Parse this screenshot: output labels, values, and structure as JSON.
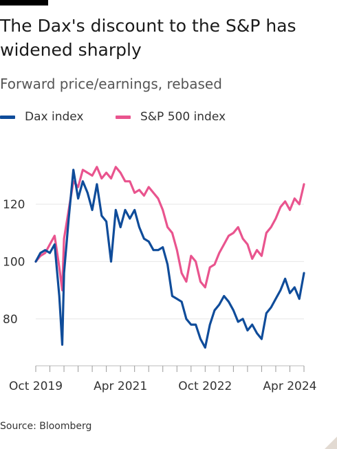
{
  "header": {
    "title": "The Dax's discount to the S&P has widened sharply",
    "subtitle": "Forward price/earnings, rebased"
  },
  "footer": {
    "source": "Source: Bloomberg"
  },
  "colors": {
    "dax": "#0f4c9a",
    "sp500": "#e9548e",
    "grid": "#e6e6e6",
    "tick_text": "#333333"
  },
  "chart_data": {
    "type": "line",
    "title": "The Dax's discount to the S&P has widened sharply",
    "subtitle": "Forward price/earnings, rebased",
    "xlabel": "",
    "ylabel": "",
    "x_ticks": [
      "Oct 2019",
      "Apr 2021",
      "Oct 2022",
      "Apr 2024"
    ],
    "y_ticks": [
      80,
      100,
      120
    ],
    "xlim": [
      "2019-10",
      "2024-07"
    ],
    "ylim": [
      67,
      138
    ],
    "grid": true,
    "legend": "top-left",
    "series": [
      {
        "name": "Dax index",
        "color": "#0f4c9a",
        "points": [
          [
            "2019-10",
            100
          ],
          [
            "2019-11",
            103
          ],
          [
            "2019-12",
            104
          ],
          [
            "2020-01",
            103
          ],
          [
            "2020-02",
            106
          ],
          [
            "2020-03",
            88
          ],
          [
            "2020-03-20",
            71
          ],
          [
            "2020-04",
            96
          ],
          [
            "2020-05",
            115
          ],
          [
            "2020-06",
            132
          ],
          [
            "2020-07",
            122
          ],
          [
            "2020-08",
            128
          ],
          [
            "2020-09",
            124
          ],
          [
            "2020-10",
            118
          ],
          [
            "2020-11",
            127
          ],
          [
            "2020-12",
            116
          ],
          [
            "2021-01",
            114
          ],
          [
            "2021-02",
            100
          ],
          [
            "2021-03",
            118
          ],
          [
            "2021-04",
            112
          ],
          [
            "2021-05",
            118
          ],
          [
            "2021-06",
            115
          ],
          [
            "2021-07",
            118
          ],
          [
            "2021-08",
            112
          ],
          [
            "2021-09",
            108
          ],
          [
            "2021-10",
            107
          ],
          [
            "2021-11",
            104
          ],
          [
            "2021-12",
            104
          ],
          [
            "2022-01",
            105
          ],
          [
            "2022-02",
            99
          ],
          [
            "2022-03",
            88
          ],
          [
            "2022-04",
            87
          ],
          [
            "2022-05",
            86
          ],
          [
            "2022-06",
            80
          ],
          [
            "2022-07",
            78
          ],
          [
            "2022-08",
            78
          ],
          [
            "2022-09",
            73
          ],
          [
            "2022-10",
            70
          ],
          [
            "2022-11",
            78
          ],
          [
            "2022-12",
            83
          ],
          [
            "2023-01",
            85
          ],
          [
            "2023-02",
            88
          ],
          [
            "2023-03",
            86
          ],
          [
            "2023-04",
            83
          ],
          [
            "2023-05",
            79
          ],
          [
            "2023-06",
            80
          ],
          [
            "2023-07",
            76
          ],
          [
            "2023-08",
            78
          ],
          [
            "2023-09",
            75
          ],
          [
            "2023-10",
            73
          ],
          [
            "2023-11",
            82
          ],
          [
            "2023-12",
            84
          ],
          [
            "2024-01",
            87
          ],
          [
            "2024-02",
            90
          ],
          [
            "2024-03",
            94
          ],
          [
            "2024-04",
            89
          ],
          [
            "2024-05",
            91
          ],
          [
            "2024-06",
            87
          ],
          [
            "2024-07",
            96
          ]
        ]
      },
      {
        "name": "S&P 500 index",
        "color": "#e9548e",
        "points": [
          [
            "2019-10",
            100
          ],
          [
            "2019-11",
            102
          ],
          [
            "2019-12",
            103
          ],
          [
            "2020-01",
            106
          ],
          [
            "2020-02",
            109
          ],
          [
            "2020-03",
            98
          ],
          [
            "2020-03-20",
            90
          ],
          [
            "2020-04",
            108
          ],
          [
            "2020-05",
            118
          ],
          [
            "2020-06",
            128
          ],
          [
            "2020-07",
            126
          ],
          [
            "2020-08",
            132
          ],
          [
            "2020-09",
            131
          ],
          [
            "2020-10",
            130
          ],
          [
            "2020-11",
            133
          ],
          [
            "2020-12",
            129
          ],
          [
            "2021-01",
            131
          ],
          [
            "2021-02",
            129
          ],
          [
            "2021-03",
            133
          ],
          [
            "2021-04",
            131
          ],
          [
            "2021-05",
            128
          ],
          [
            "2021-06",
            128
          ],
          [
            "2021-07",
            124
          ],
          [
            "2021-08",
            125
          ],
          [
            "2021-09",
            123
          ],
          [
            "2021-10",
            126
          ],
          [
            "2021-11",
            124
          ],
          [
            "2021-12",
            122
          ],
          [
            "2022-01",
            118
          ],
          [
            "2022-02",
            112
          ],
          [
            "2022-03",
            110
          ],
          [
            "2022-04",
            104
          ],
          [
            "2022-05",
            96
          ],
          [
            "2022-06",
            93
          ],
          [
            "2022-07",
            102
          ],
          [
            "2022-08",
            100
          ],
          [
            "2022-09",
            93
          ],
          [
            "2022-10",
            91
          ],
          [
            "2022-11",
            98
          ],
          [
            "2022-12",
            99
          ],
          [
            "2023-01",
            103
          ],
          [
            "2023-02",
            106
          ],
          [
            "2023-03",
            109
          ],
          [
            "2023-04",
            110
          ],
          [
            "2023-05",
            112
          ],
          [
            "2023-06",
            108
          ],
          [
            "2023-07",
            106
          ],
          [
            "2023-08",
            101
          ],
          [
            "2023-09",
            104
          ],
          [
            "2023-10",
            102
          ],
          [
            "2023-11",
            110
          ],
          [
            "2023-12",
            112
          ],
          [
            "2024-01",
            115
          ],
          [
            "2024-02",
            119
          ],
          [
            "2024-03",
            121
          ],
          [
            "2024-04",
            118
          ],
          [
            "2024-05",
            122
          ],
          [
            "2024-06",
            120
          ],
          [
            "2024-07",
            127
          ]
        ]
      }
    ]
  }
}
